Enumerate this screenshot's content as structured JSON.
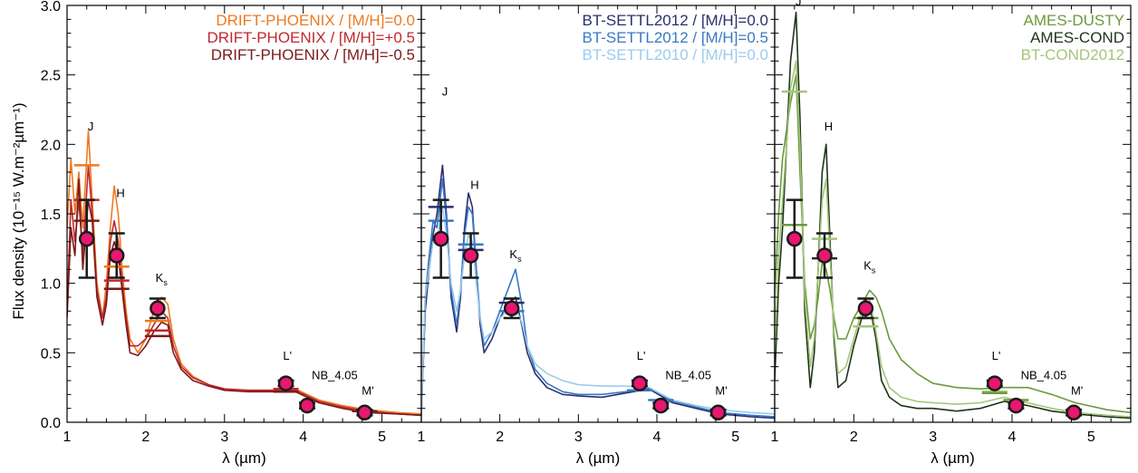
{
  "chart_data": {
    "type": "line",
    "ylabel": "Flux density (10⁻¹⁵ W.m⁻²µm⁻¹)",
    "ylim": [
      0,
      3.0
    ],
    "yticks": [
      "0.0",
      "0.5",
      "1.0",
      "1.5",
      "2.0",
      "2.5",
      "3.0"
    ],
    "xlabel": "λ (µm)",
    "xlim": [
      1,
      5.5
    ],
    "xticks": [
      "1",
      "2",
      "3",
      "4",
      "5"
    ],
    "photometry": [
      {
        "band": "J",
        "x": 1.25,
        "y": 1.32,
        "yerr": 0.28
      },
      {
        "band": "H",
        "x": 1.63,
        "y": 1.2,
        "yerr": 0.16
      },
      {
        "band": "Ks",
        "x": 2.15,
        "y": 0.82,
        "yerr": 0.07
      },
      {
        "band": "L'",
        "x": 3.78,
        "y": 0.28,
        "yerr": 0.02
      },
      {
        "band": "NB_4.05",
        "x": 4.05,
        "y": 0.12,
        "yerr": 0.02
      },
      {
        "band": "M'",
        "x": 4.78,
        "y": 0.07,
        "yerr": 0.02
      }
    ],
    "panels": [
      {
        "legend": [
          "DRIFT-PHOENIX / [M/H]=0.0",
          "DRIFT-PHOENIX / [M/H]=+0.5",
          "DRIFT-PHOENIX / [M/H]=-0.5"
        ],
        "band_labels": [
          {
            "text": "J",
            "x": 1.3,
            "y": 2.1
          },
          {
            "text": "H",
            "x": 1.68,
            "y": 1.62
          },
          {
            "text": "K",
            "sub": "s",
            "x": 2.2,
            "y": 1.01
          },
          {
            "text": "L'",
            "x": 3.8,
            "y": 0.45
          },
          {
            "text": "NB_4.05",
            "x": 4.4,
            "y": 0.31
          },
          {
            "text": "M'",
            "x": 4.82,
            "y": 0.2
          }
        ],
        "series": [
          {
            "name": "DRIFT-PHOENIX / [M/H]=0.0",
            "color": "#ec7a22",
            "x": [
              1.0,
              1.05,
              1.1,
              1.15,
              1.2,
              1.27,
              1.32,
              1.38,
              1.45,
              1.5,
              1.55,
              1.6,
              1.65,
              1.7,
              1.75,
              1.8,
              1.9,
              2.0,
              2.1,
              2.2,
              2.28,
              2.35,
              2.45,
              2.6,
              2.8,
              3.0,
              3.3,
              3.6,
              3.9,
              4.2,
              4.5,
              4.8,
              5.2,
              5.5
            ],
            "y": [
              1.4,
              1.9,
              1.5,
              1.8,
              1.4,
              2.1,
              1.6,
              1.0,
              0.75,
              1.0,
              1.4,
              1.7,
              1.5,
              1.1,
              0.8,
              0.6,
              0.5,
              0.6,
              0.8,
              0.9,
              0.85,
              0.6,
              0.42,
              0.33,
              0.27,
              0.24,
              0.23,
              0.23,
              0.24,
              0.16,
              0.12,
              0.09,
              0.07,
              0.06
            ]
          },
          {
            "name": "DRIFT-PHOENIX / [M/H]=+0.5",
            "color": "#c0282d",
            "x": [
              1.0,
              1.05,
              1.1,
              1.15,
              1.2,
              1.27,
              1.32,
              1.38,
              1.45,
              1.5,
              1.55,
              1.6,
              1.65,
              1.7,
              1.75,
              1.8,
              1.9,
              2.0,
              2.1,
              2.2,
              2.28,
              2.35,
              2.45,
              2.6,
              2.8,
              3.0,
              3.3,
              3.6,
              3.9,
              4.2,
              4.5,
              4.8,
              5.2,
              5.5
            ],
            "y": [
              0.8,
              1.6,
              1.3,
              1.6,
              1.2,
              1.85,
              1.5,
              0.95,
              0.75,
              0.9,
              1.3,
              1.45,
              1.3,
              1.0,
              0.75,
              0.55,
              0.55,
              0.6,
              0.7,
              0.8,
              0.75,
              0.55,
              0.4,
              0.32,
              0.27,
              0.24,
              0.23,
              0.23,
              0.23,
              0.15,
              0.11,
              0.08,
              0.06,
              0.05
            ]
          },
          {
            "name": "DRIFT-PHOENIX / [M/H]=-0.5",
            "color": "#7b1a1a",
            "x": [
              1.0,
              1.05,
              1.1,
              1.15,
              1.2,
              1.27,
              1.32,
              1.38,
              1.45,
              1.5,
              1.55,
              1.6,
              1.65,
              1.7,
              1.75,
              1.8,
              1.9,
              2.0,
              2.1,
              2.2,
              2.28,
              2.35,
              2.45,
              2.6,
              2.8,
              3.0,
              3.3,
              3.6,
              3.9,
              4.2,
              4.5,
              4.8,
              5.2,
              5.5
            ],
            "y": [
              0.75,
              1.4,
              1.2,
              1.75,
              1.1,
              1.6,
              1.45,
              0.9,
              0.7,
              0.85,
              1.2,
              1.3,
              1.2,
              0.95,
              0.7,
              0.5,
              0.48,
              0.55,
              0.65,
              0.72,
              0.7,
              0.5,
              0.38,
              0.3,
              0.26,
              0.23,
              0.22,
              0.22,
              0.22,
              0.14,
              0.1,
              0.07,
              0.06,
              0.05
            ]
          }
        ],
        "synthetic_photometry": [
          {
            "x": 1.25,
            "y": 1.85,
            "color": "#ec7a22"
          },
          {
            "x": 1.25,
            "y": 1.6,
            "color": "#c0282d"
          },
          {
            "x": 1.25,
            "y": 1.45,
            "color": "#7b1a1a"
          },
          {
            "x": 1.63,
            "y": 1.12,
            "color": "#ec7a22"
          },
          {
            "x": 1.63,
            "y": 1.02,
            "color": "#c0282d"
          },
          {
            "x": 1.63,
            "y": 0.96,
            "color": "#7b1a1a"
          },
          {
            "x": 2.15,
            "y": 0.73,
            "color": "#ec7a22"
          },
          {
            "x": 2.15,
            "y": 0.66,
            "color": "#c0282d"
          },
          {
            "x": 2.15,
            "y": 0.62,
            "color": "#7b1a1a"
          },
          {
            "x": 3.78,
            "y": 0.24,
            "color": "#c0282d"
          },
          {
            "x": 3.78,
            "y": 0.22,
            "color": "#7b1a1a"
          },
          {
            "x": 4.78,
            "y": 0.08,
            "color": "#7b1a1a"
          }
        ]
      },
      {
        "legend": [
          "BT-SETTL2012 / [M/H]=0.0",
          "BT-SETTL2012 / [M/H]=0.5",
          "BT-SETTL2010 / [M/H]=0.0"
        ],
        "band_labels": [
          {
            "text": "J",
            "x": 1.3,
            "y": 2.35
          },
          {
            "text": "H",
            "x": 1.68,
            "y": 1.68
          },
          {
            "text": "K",
            "sub": "s",
            "x": 2.2,
            "y": 1.18
          },
          {
            "text": "L'",
            "x": 3.8,
            "y": 0.45
          },
          {
            "text": "NB_4.05",
            "x": 4.4,
            "y": 0.31
          },
          {
            "text": "M'",
            "x": 4.82,
            "y": 0.2
          }
        ],
        "series": [
          {
            "name": "BT-SETTL2012 / [M/H]=0.0",
            "color": "#2a2f6e",
            "x": [
              1.0,
              1.05,
              1.1,
              1.15,
              1.2,
              1.27,
              1.32,
              1.38,
              1.45,
              1.5,
              1.55,
              1.6,
              1.65,
              1.7,
              1.75,
              1.8,
              1.9,
              2.0,
              2.1,
              2.2,
              2.28,
              2.35,
              2.45,
              2.6,
              2.8,
              3.0,
              3.3,
              3.6,
              3.9,
              4.2,
              4.5,
              4.8,
              5.2,
              5.5
            ],
            "y": [
              0.05,
              0.8,
              1.1,
              1.35,
              1.5,
              1.85,
              1.5,
              0.9,
              0.65,
              0.9,
              1.4,
              1.65,
              1.55,
              1.1,
              0.7,
              0.5,
              0.6,
              0.75,
              0.85,
              0.9,
              0.7,
              0.5,
              0.35,
              0.25,
              0.2,
              0.19,
              0.18,
              0.21,
              0.24,
              0.14,
              0.1,
              0.06,
              0.04,
              0.03
            ]
          },
          {
            "name": "BT-SETTL2012 / [M/H]=0.5",
            "color": "#3a78c4",
            "x": [
              1.0,
              1.05,
              1.1,
              1.15,
              1.2,
              1.27,
              1.32,
              1.38,
              1.45,
              1.5,
              1.55,
              1.6,
              1.65,
              1.7,
              1.75,
              1.8,
              1.9,
              2.0,
              2.1,
              2.2,
              2.28,
              2.35,
              2.45,
              2.6,
              2.8,
              3.0,
              3.3,
              3.6,
              3.9,
              4.2,
              4.5,
              4.8,
              5.2,
              5.5
            ],
            "y": [
              0.05,
              0.9,
              1.2,
              1.45,
              1.4,
              1.75,
              1.45,
              0.95,
              0.7,
              0.95,
              1.35,
              1.55,
              1.5,
              1.1,
              0.75,
              0.55,
              0.65,
              0.8,
              0.95,
              1.1,
              0.85,
              0.55,
              0.38,
              0.28,
              0.22,
              0.2,
              0.2,
              0.22,
              0.25,
              0.15,
              0.11,
              0.07,
              0.05,
              0.04
            ]
          },
          {
            "name": "BT-SETTL2010 / [M/H]=0.0",
            "color": "#9ccbec",
            "x": [
              1.0,
              1.05,
              1.1,
              1.15,
              1.2,
              1.27,
              1.32,
              1.38,
              1.45,
              1.5,
              1.55,
              1.6,
              1.65,
              1.7,
              1.75,
              1.8,
              1.9,
              2.0,
              2.1,
              2.2,
              2.28,
              2.35,
              2.45,
              2.6,
              2.8,
              3.0,
              3.3,
              3.6,
              3.9,
              4.2,
              4.5,
              4.8,
              5.2,
              5.5
            ],
            "y": [
              0.05,
              0.9,
              1.1,
              1.3,
              1.3,
              1.55,
              1.35,
              1.0,
              0.8,
              0.95,
              1.2,
              1.35,
              1.3,
              1.0,
              0.75,
              0.6,
              0.65,
              0.75,
              0.8,
              0.82,
              0.72,
              0.55,
              0.42,
              0.35,
              0.3,
              0.27,
              0.26,
              0.26,
              0.25,
              0.16,
              0.12,
              0.09,
              0.07,
              0.06
            ]
          }
        ],
        "synthetic_photometry": [
          {
            "x": 1.25,
            "y": 1.55,
            "color": "#2a2f6e"
          },
          {
            "x": 1.25,
            "y": 1.45,
            "color": "#3a78c4"
          },
          {
            "x": 1.63,
            "y": 1.28,
            "color": "#3a78c4"
          },
          {
            "x": 1.63,
            "y": 1.24,
            "color": "#2a2f6e"
          },
          {
            "x": 2.15,
            "y": 0.86,
            "color": "#2a2f6e"
          },
          {
            "x": 2.15,
            "y": 0.8,
            "color": "#3a78c4"
          },
          {
            "x": 3.78,
            "y": 0.23,
            "color": "#3a78c4"
          },
          {
            "x": 4.05,
            "y": 0.16,
            "color": "#3a78c4"
          }
        ]
      },
      {
        "legend": [
          "AMES-DUSTY",
          "AMES-COND",
          "BT-COND2012"
        ],
        "band_labels": [
          {
            "text": "J",
            "x": 1.3,
            "y": 3.0
          },
          {
            "text": "H",
            "x": 1.68,
            "y": 2.1
          },
          {
            "text": "K",
            "sub": "s",
            "x": 2.2,
            "y": 1.1
          },
          {
            "text": "L'",
            "x": 3.8,
            "y": 0.45
          },
          {
            "text": "NB_4.05",
            "x": 4.4,
            "y": 0.31
          },
          {
            "text": "M'",
            "x": 4.82,
            "y": 0.2
          }
        ],
        "series": [
          {
            "name": "AMES-DUSTY",
            "color": "#6c9a3c",
            "x": [
              1.0,
              1.05,
              1.1,
              1.15,
              1.2,
              1.27,
              1.32,
              1.38,
              1.45,
              1.5,
              1.55,
              1.6,
              1.65,
              1.7,
              1.75,
              1.8,
              1.9,
              2.0,
              2.1,
              2.2,
              2.28,
              2.35,
              2.45,
              2.6,
              2.8,
              3.0,
              3.3,
              3.6,
              3.9,
              4.2,
              4.5,
              4.8,
              5.2,
              5.5
            ],
            "y": [
              0.9,
              1.5,
              1.9,
              2.1,
              2.3,
              2.5,
              1.8,
              1.0,
              0.6,
              0.7,
              0.9,
              1.15,
              1.1,
              0.95,
              0.75,
              0.6,
              0.6,
              0.75,
              0.85,
              0.95,
              0.9,
              0.8,
              0.6,
              0.45,
              0.35,
              0.28,
              0.25,
              0.24,
              0.25,
              0.25,
              0.2,
              0.14,
              0.09,
              0.07
            ]
          },
          {
            "name": "AMES-COND",
            "color": "#1e3318",
            "x": [
              1.0,
              1.05,
              1.1,
              1.15,
              1.2,
              1.27,
              1.32,
              1.38,
              1.45,
              1.5,
              1.55,
              1.6,
              1.65,
              1.7,
              1.75,
              1.8,
              1.9,
              2.0,
              2.1,
              2.2,
              2.28,
              2.35,
              2.45,
              2.6,
              2.8,
              3.0,
              3.3,
              3.6,
              3.9,
              4.2,
              4.5,
              4.8,
              5.2,
              5.5
            ],
            "y": [
              0.3,
              1.0,
              1.4,
              2.0,
              2.6,
              2.95,
              2.2,
              0.8,
              0.25,
              0.5,
              1.1,
              1.8,
              2.0,
              1.3,
              0.6,
              0.25,
              0.3,
              0.55,
              0.75,
              0.85,
              0.6,
              0.3,
              0.18,
              0.12,
              0.1,
              0.1,
              0.08,
              0.1,
              0.15,
              0.12,
              0.08,
              0.06,
              0.04,
              0.03
            ]
          },
          {
            "name": "BT-COND2012",
            "color": "#a3c67a",
            "x": [
              1.0,
              1.05,
              1.1,
              1.15,
              1.2,
              1.27,
              1.32,
              1.38,
              1.45,
              1.5,
              1.55,
              1.6,
              1.65,
              1.7,
              1.75,
              1.8,
              1.9,
              2.0,
              2.1,
              2.2,
              2.28,
              2.35,
              2.45,
              2.6,
              2.8,
              3.0,
              3.3,
              3.6,
              3.9,
              4.2,
              4.5,
              4.8,
              5.2,
              5.5
            ],
            "y": [
              0.5,
              1.2,
              1.6,
              2.0,
              2.4,
              2.6,
              2.0,
              0.9,
              0.4,
              0.6,
              1.1,
              1.6,
              1.75,
              1.2,
              0.65,
              0.35,
              0.4,
              0.6,
              0.8,
              0.88,
              0.65,
              0.4,
              0.25,
              0.18,
              0.15,
              0.14,
              0.13,
              0.14,
              0.18,
              0.14,
              0.1,
              0.07,
              0.05,
              0.04
            ]
          }
        ],
        "synthetic_photometry": [
          {
            "x": 1.25,
            "y": 2.38,
            "color": "#a3c67a"
          },
          {
            "x": 1.25,
            "y": 1.42,
            "color": "#6c9a3c"
          },
          {
            "x": 1.63,
            "y": 1.32,
            "color": "#a3c67a"
          },
          {
            "x": 1.63,
            "y": 1.18,
            "color": "#1e3318"
          },
          {
            "x": 2.15,
            "y": 0.75,
            "color": "#6c9a3c"
          },
          {
            "x": 2.15,
            "y": 0.69,
            "color": "#a3c67a"
          },
          {
            "x": 3.78,
            "y": 0.22,
            "color": "#a3c67a"
          },
          {
            "x": 3.78,
            "y": 0.21,
            "color": "#6c9a3c"
          },
          {
            "x": 4.05,
            "y": 0.16,
            "color": "#6c9a3c"
          }
        ]
      }
    ]
  }
}
